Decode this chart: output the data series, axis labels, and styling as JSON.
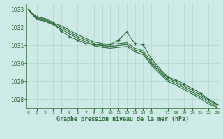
{
  "title": "Graphe pression niveau de la mer (hPa)",
  "bg_color": "#ceeae6",
  "grid_color": "#b8d8d4",
  "line_color": "#2d6b3a",
  "xlim": [
    -0.2,
    23.2
  ],
  "ylim": [
    1027.5,
    1033.3
  ],
  "yticks": [
    1028,
    1029,
    1030,
    1031,
    1032,
    1033
  ],
  "xticks": [
    0,
    1,
    2,
    3,
    4,
    5,
    6,
    7,
    8,
    9,
    10,
    11,
    12,
    13,
    14,
    15,
    17,
    18,
    19,
    20,
    21,
    22,
    23
  ],
  "series": [
    {
      "x": [
        0,
        1,
        2,
        3,
        4,
        5,
        6,
        7,
        8,
        9,
        10,
        11,
        12,
        13,
        14,
        15,
        17,
        18,
        19,
        20,
        21,
        22,
        23
      ],
      "y": [
        1033.0,
        1032.6,
        1032.5,
        1032.3,
        1031.8,
        1031.5,
        1031.3,
        1031.1,
        1031.05,
        1031.0,
        1031.05,
        1031.3,
        1031.75,
        1031.1,
        1031.05,
        1030.25,
        1029.25,
        1029.1,
        1028.85,
        1028.6,
        1028.35,
        1028.0,
        1027.75
      ],
      "has_markers": true
    },
    {
      "x": [
        0,
        1,
        2,
        3,
        4,
        5,
        6,
        7,
        8,
        9,
        10,
        11,
        12,
        13,
        14,
        15,
        17,
        18,
        19,
        20,
        21,
        22,
        23
      ],
      "y": [
        1033.0,
        1032.55,
        1032.45,
        1032.25,
        1032.1,
        1031.85,
        1031.6,
        1031.4,
        1031.2,
        1031.1,
        1031.05,
        1031.1,
        1031.15,
        1030.85,
        1030.7,
        1030.1,
        1029.2,
        1029.0,
        1028.75,
        1028.5,
        1028.25,
        1027.95,
        1027.7
      ],
      "has_markers": false
    },
    {
      "x": [
        0,
        1,
        2,
        3,
        4,
        5,
        6,
        7,
        8,
        9,
        10,
        11,
        12,
        13,
        14,
        15,
        17,
        18,
        19,
        20,
        21,
        22,
        23
      ],
      "y": [
        1033.0,
        1032.5,
        1032.4,
        1032.2,
        1032.0,
        1031.75,
        1031.5,
        1031.3,
        1031.1,
        1031.0,
        1030.95,
        1031.0,
        1031.05,
        1030.75,
        1030.6,
        1030.0,
        1029.1,
        1028.9,
        1028.65,
        1028.4,
        1028.15,
        1027.85,
        1027.6
      ],
      "has_markers": false
    },
    {
      "x": [
        0,
        1,
        2,
        3,
        4,
        5,
        6,
        7,
        8,
        9,
        10,
        11,
        12,
        13,
        14,
        15,
        17,
        18,
        19,
        20,
        21,
        22,
        23
      ],
      "y": [
        1033.0,
        1032.45,
        1032.35,
        1032.15,
        1031.9,
        1031.65,
        1031.4,
        1031.2,
        1031.0,
        1030.9,
        1030.85,
        1030.9,
        1030.95,
        1030.65,
        1030.5,
        1029.9,
        1029.0,
        1028.8,
        1028.55,
        1028.3,
        1028.05,
        1027.75,
        1027.55
      ],
      "has_markers": false
    }
  ]
}
